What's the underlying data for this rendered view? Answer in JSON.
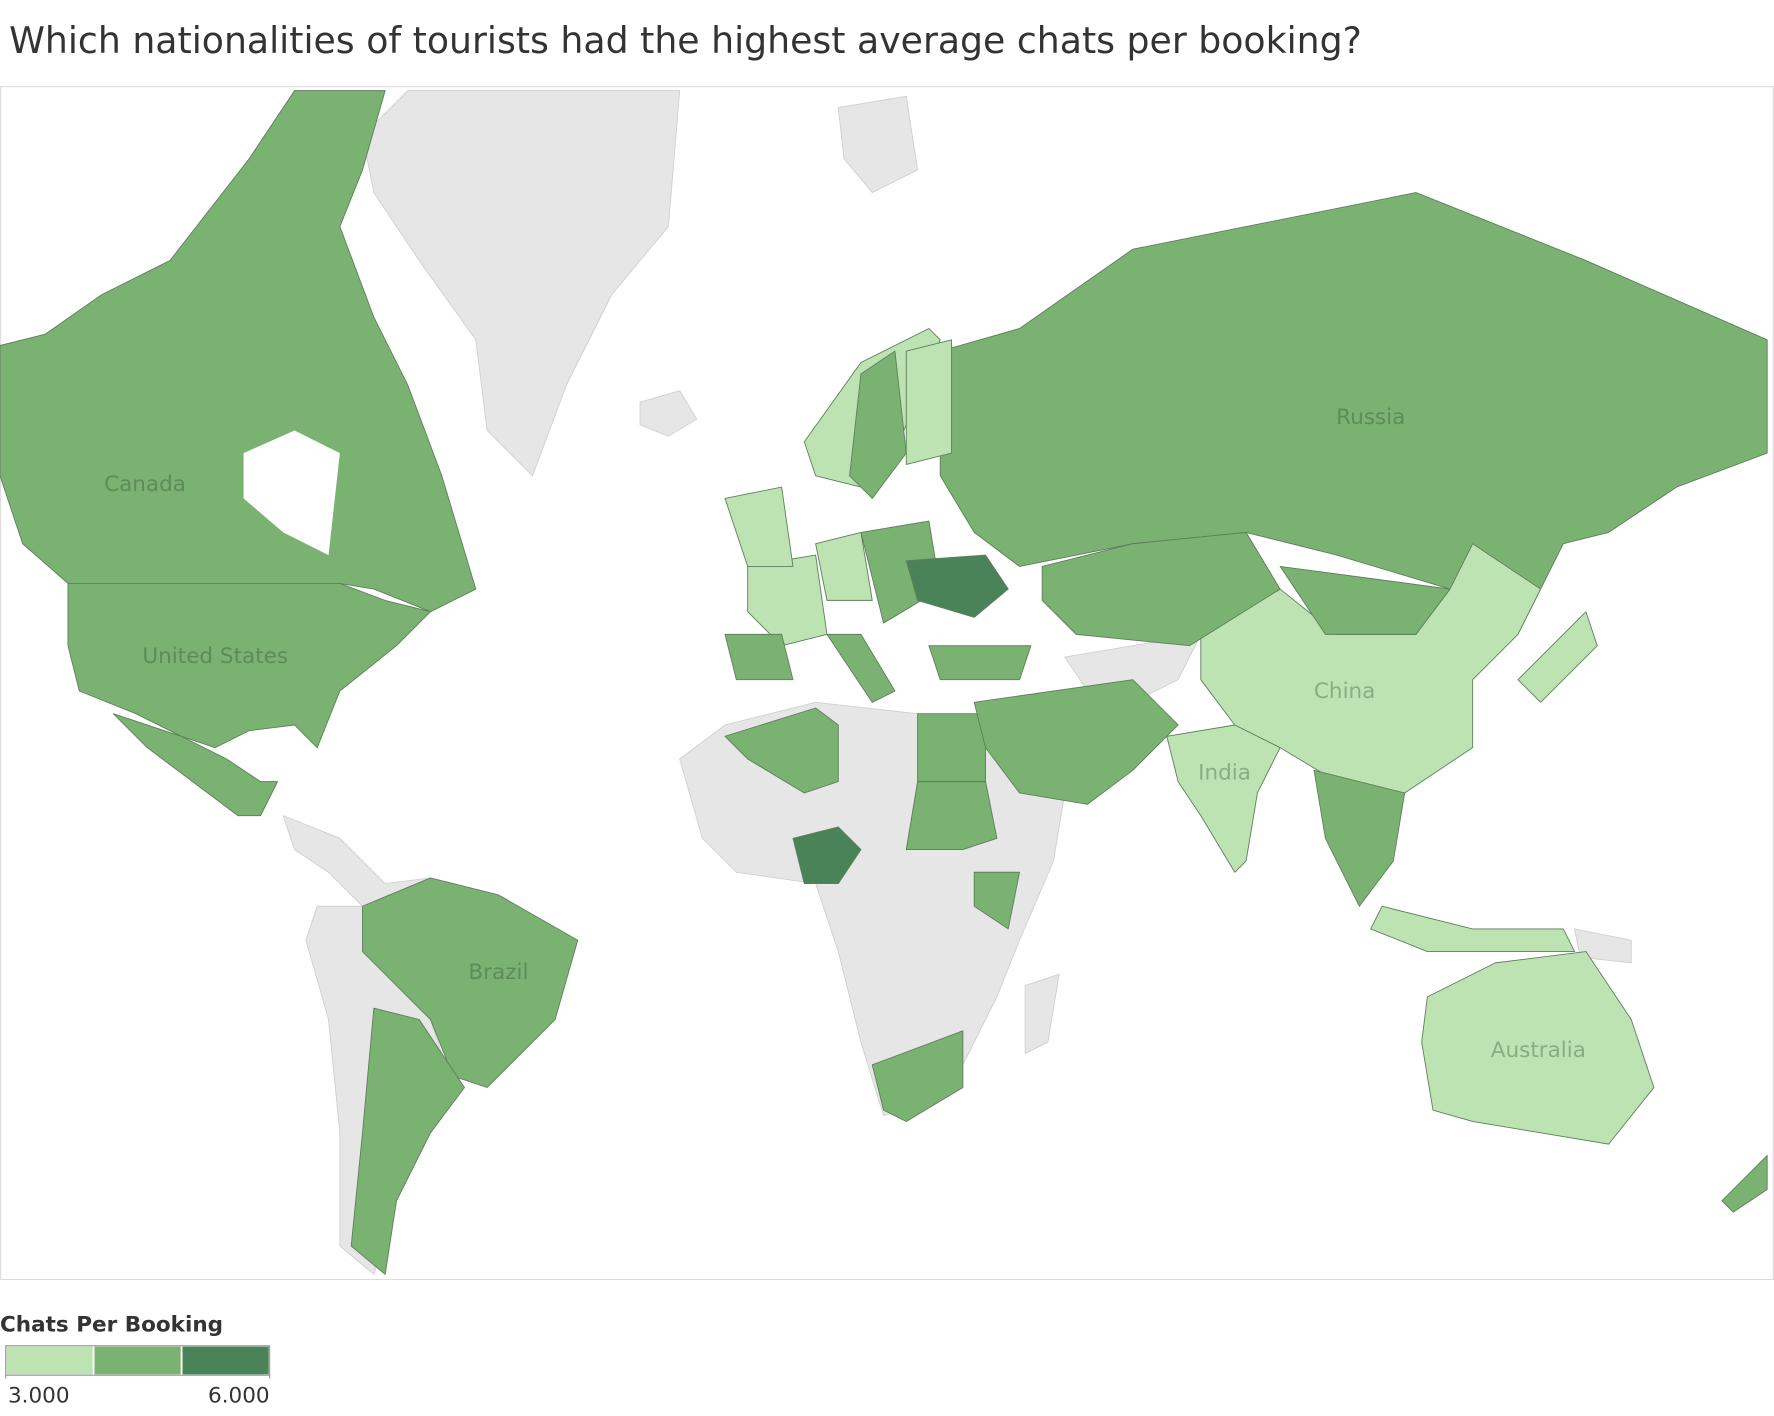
{
  "title": "Which nationalities of tourists had the highest average chats per booking?",
  "map": {
    "regions": [
      {
        "name": "Canada",
        "color": "#7ab272"
      },
      {
        "name": "United States",
        "color": "#7ab272"
      },
      {
        "name": "Brazil",
        "color": "#7ab272"
      },
      {
        "name": "Russia",
        "color": "#7ab272"
      },
      {
        "name": "China",
        "color": "#bde3b3"
      },
      {
        "name": "India",
        "color": "#bde3b3"
      },
      {
        "name": "Australia",
        "color": "#bde3b3"
      }
    ],
    "no_data_color": "#e6e6e6"
  },
  "legend": {
    "title": "Chats Per Booking",
    "colors": [
      "#bde3b3",
      "#7ab272",
      "#4a8358"
    ],
    "lim": [
      3,
      6
    ],
    "ticks": [
      {
        "value": 3,
        "label": "3.000"
      },
      {
        "value": 6,
        "label": "6.000"
      }
    ]
  }
}
